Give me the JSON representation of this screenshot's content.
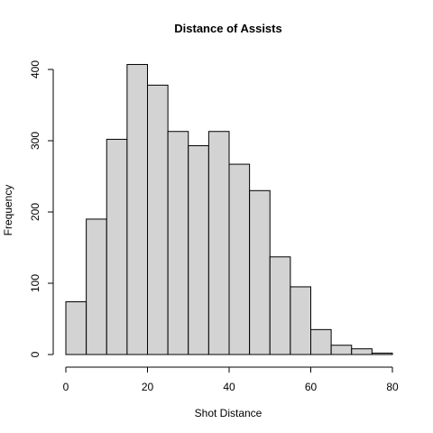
{
  "chart_data": {
    "type": "bar",
    "title": "Distance of Assists",
    "xlabel": "Shot Distance",
    "ylabel": "Frequency",
    "bins": [
      {
        "from": 0,
        "to": 5,
        "count": 74
      },
      {
        "from": 5,
        "to": 10,
        "count": 190
      },
      {
        "from": 10,
        "to": 15,
        "count": 302
      },
      {
        "from": 15,
        "to": 20,
        "count": 407
      },
      {
        "from": 20,
        "to": 25,
        "count": 378
      },
      {
        "from": 25,
        "to": 30,
        "count": 313
      },
      {
        "from": 30,
        "to": 35,
        "count": 293
      },
      {
        "from": 35,
        "to": 40,
        "count": 313
      },
      {
        "from": 40,
        "to": 45,
        "count": 267
      },
      {
        "from": 45,
        "to": 50,
        "count": 230
      },
      {
        "from": 50,
        "to": 55,
        "count": 137
      },
      {
        "from": 55,
        "to": 60,
        "count": 95
      },
      {
        "from": 60,
        "to": 65,
        "count": 35
      },
      {
        "from": 65,
        "to": 70,
        "count": 13
      },
      {
        "from": 70,
        "to": 75,
        "count": 8
      },
      {
        "from": 75,
        "to": 80,
        "count": 2
      }
    ],
    "xlim": [
      0,
      80
    ],
    "ylim": [
      0,
      400
    ],
    "xticks": [
      "0",
      "20",
      "40",
      "60",
      "80"
    ],
    "yticks": [
      "0",
      "100",
      "200",
      "300",
      "400"
    ],
    "grid": false
  }
}
